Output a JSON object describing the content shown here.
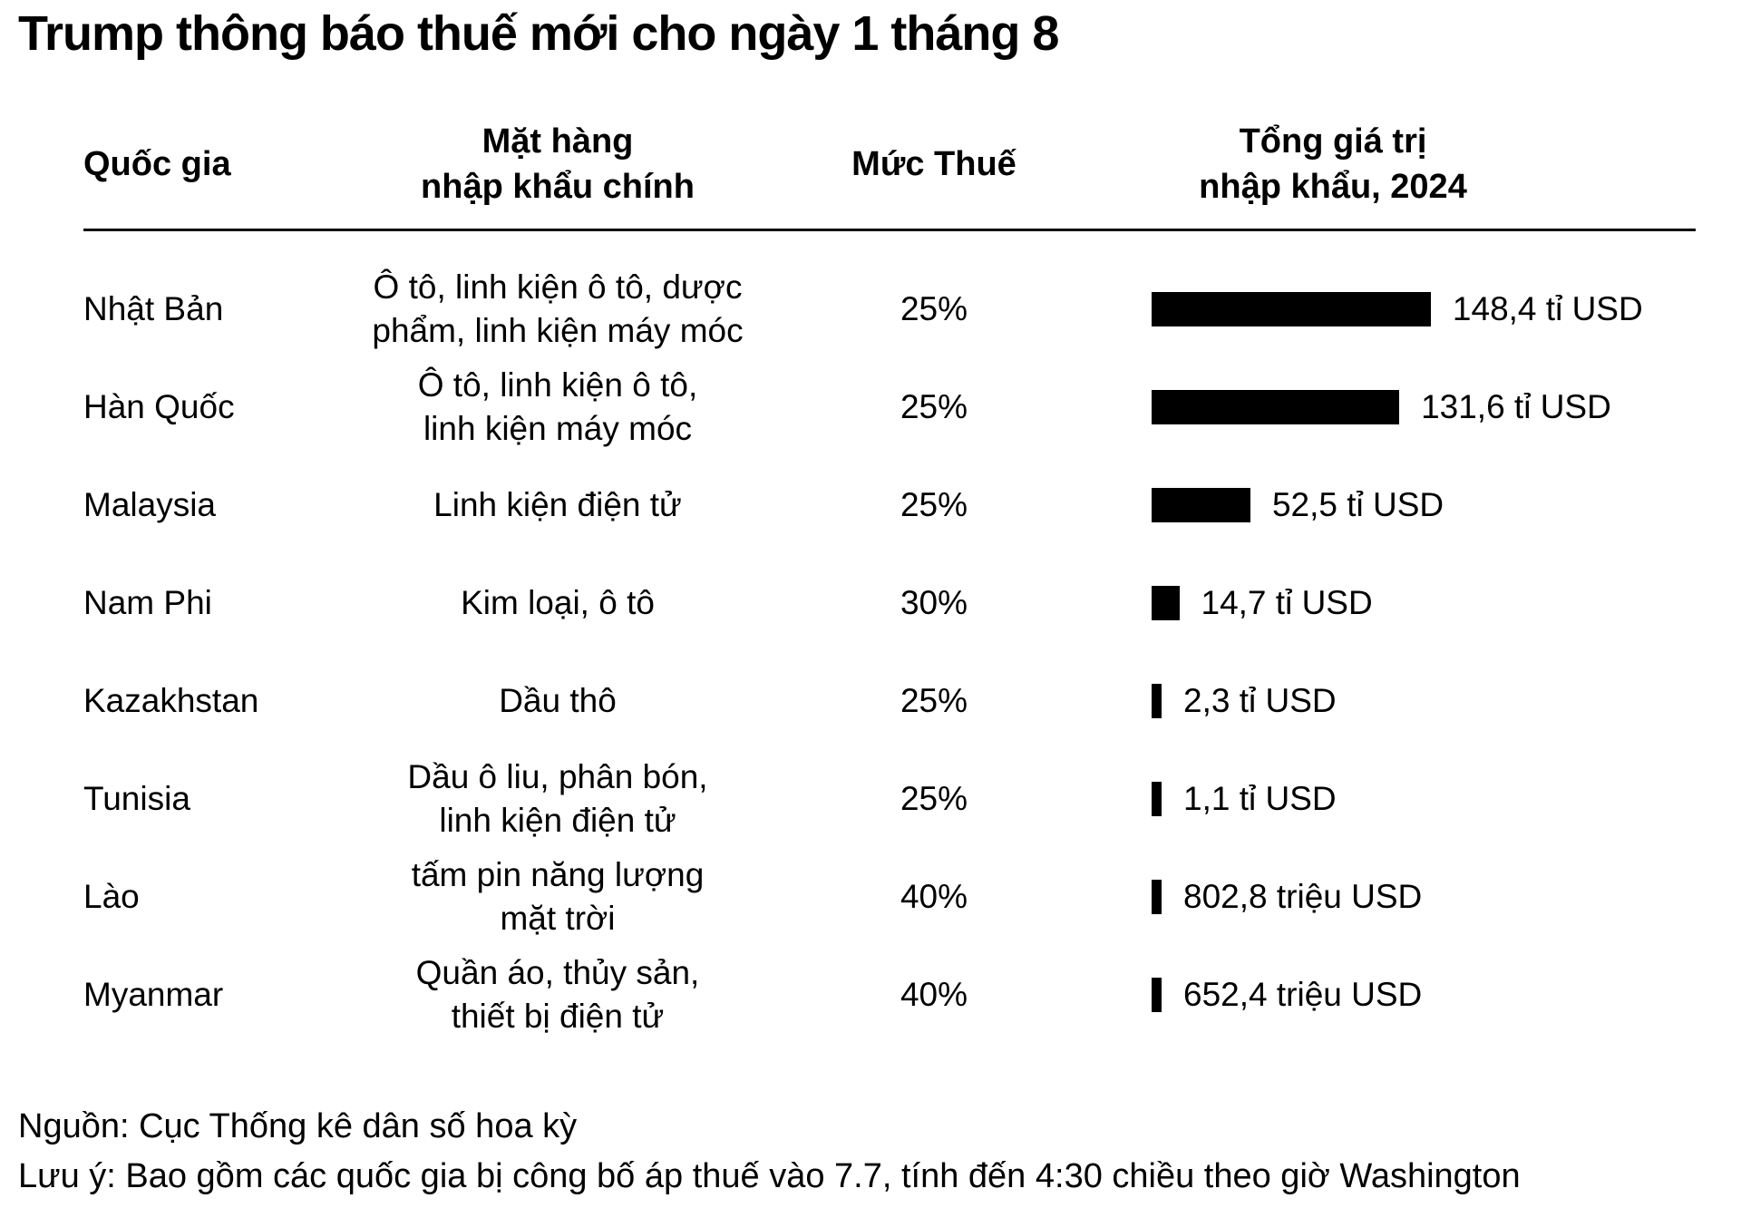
{
  "title": "Trump thông báo thuế mới cho ngày 1 tháng 8",
  "colors": {
    "background": "#ffffff",
    "text": "#000000",
    "bar": "#000000"
  },
  "table": {
    "headers": {
      "country": "Quốc gia",
      "imports": "Mặt hàng\nnhập khẩu chính",
      "tariff": "Mức Thuế",
      "value": "Tổng giá trị\nnhập khẩu, 2024"
    },
    "rows": [
      {
        "country": "Nhật Bản",
        "imports": "Ô tô, linh kiện ô tô, dược\nphẩm, linh kiện máy móc",
        "tariff": "25%",
        "value_label": "148,4 tỉ USD",
        "value_billion_usd": 148.4
      },
      {
        "country": "Hàn Quốc",
        "imports": "Ô tô, linh kiện ô tô,\nlinh kiện máy móc",
        "tariff": "25%",
        "value_label": "131,6 tỉ USD",
        "value_billion_usd": 131.6
      },
      {
        "country": "Malaysia",
        "imports": "Linh kiện điện tử",
        "tariff": "25%",
        "value_label": "52,5 tỉ USD",
        "value_billion_usd": 52.5
      },
      {
        "country": "Nam Phi",
        "imports": "Kim loại, ô tô",
        "tariff": "30%",
        "value_label": "14,7 tỉ USD",
        "value_billion_usd": 14.7
      },
      {
        "country": "Kazakhstan",
        "imports": "Dầu thô",
        "tariff": "25%",
        "value_label": "2,3 tỉ USD",
        "value_billion_usd": 2.3
      },
      {
        "country": "Tunisia",
        "imports": "Dầu ô liu, phân bón,\nlinh kiện điện tử",
        "tariff": "25%",
        "value_label": "1,1 tỉ USD",
        "value_billion_usd": 1.1
      },
      {
        "country": "Lào",
        "imports": "tấm pin năng lượng\nmặt trời",
        "tariff": "40%",
        "value_label": "802,8 triệu USD",
        "value_billion_usd": 0.8028
      },
      {
        "country": "Myanmar",
        "imports": "Quần áo, thủy sản,\nthiết bị điện tử",
        "tariff": "40%",
        "value_label": "652,4 triệu USD",
        "value_billion_usd": 0.6524
      }
    ]
  },
  "footer": {
    "source": "Nguồn: Cục Thống kê dân số hoa kỳ",
    "note": "Lưu ý: Bao gồm các quốc gia bị công bố áp thuế vào 7.7, tính đến 4:30 chiều theo giờ Washington"
  },
  "chart_data": {
    "type": "bar",
    "orientation": "horizontal",
    "title": "Trump thông báo thuế mới cho ngày 1 tháng 8",
    "categories": [
      "Nhật Bản",
      "Hàn Quốc",
      "Malaysia",
      "Nam Phi",
      "Kazakhstan",
      "Tunisia",
      "Lào",
      "Myanmar"
    ],
    "series": [
      {
        "name": "Tổng giá trị nhập khẩu, 2024 (tỉ USD)",
        "values": [
          148.4,
          131.6,
          52.5,
          14.7,
          2.3,
          1.1,
          0.8028,
          0.6524
        ]
      }
    ],
    "value_labels": [
      "148,4 tỉ USD",
      "131,6 tỉ USD",
      "52,5 tỉ USD",
      "14,7 tỉ USD",
      "2,3 tỉ USD",
      "1,1 tỉ USD",
      "802,8 triệu USD",
      "652,4 triệu USD"
    ],
    "tariff_rates": [
      "25%",
      "25%",
      "25%",
      "30%",
      "25%",
      "25%",
      "40%",
      "40%"
    ],
    "main_imports": [
      "Ô tô, linh kiện ô tô, dược phẩm, linh kiện máy móc",
      "Ô tô, linh kiện ô tô, linh kiện máy móc",
      "Linh kiện điện tử",
      "Kim loại, ô tô",
      "Dầu thô",
      "Dầu ô liu, phân bón, linh kiện điện tử",
      "tấm pin năng lượng mặt trời",
      "Quần áo, thủy sản, thiết bị điện tử"
    ],
    "xlim": [
      0,
      150
    ],
    "grid": false,
    "legend": false,
    "bar_color": "#000000"
  }
}
